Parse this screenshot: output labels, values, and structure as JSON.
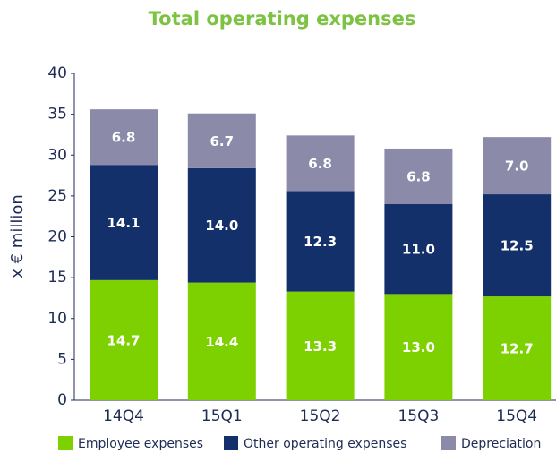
{
  "chart_data": {
    "type": "stacked_bar",
    "title": "Total operating expenses",
    "y_label": "x € million",
    "categories": [
      "14Q4",
      "15Q1",
      "15Q2",
      "15Q3",
      "15Q4"
    ],
    "series": [
      {
        "name": "Employee expenses",
        "color": "#7ed100",
        "values": [
          14.7,
          14.4,
          13.3,
          13.0,
          12.7
        ],
        "value_labels": [
          "14.7",
          "14.4",
          "13.3",
          "13.0",
          "12.7"
        ]
      },
      {
        "name": "Other operating expenses",
        "color": "#13306b",
        "values": [
          14.1,
          14.0,
          12.3,
          11.0,
          12.5
        ],
        "value_labels": [
          "14.1",
          "14.0",
          "12.3",
          "11.0",
          "12.5"
        ]
      },
      {
        "name": "Depreciation",
        "color": "#8b8aa9",
        "values": [
          6.8,
          6.7,
          6.8,
          6.8,
          7.0
        ],
        "value_labels": [
          "6.8",
          "6.7",
          "6.8",
          "6.8",
          "7.0"
        ]
      }
    ],
    "ylim": [
      0,
      40
    ],
    "yticks": [
      0,
      5,
      10,
      15,
      20,
      25,
      30,
      35,
      40
    ]
  }
}
